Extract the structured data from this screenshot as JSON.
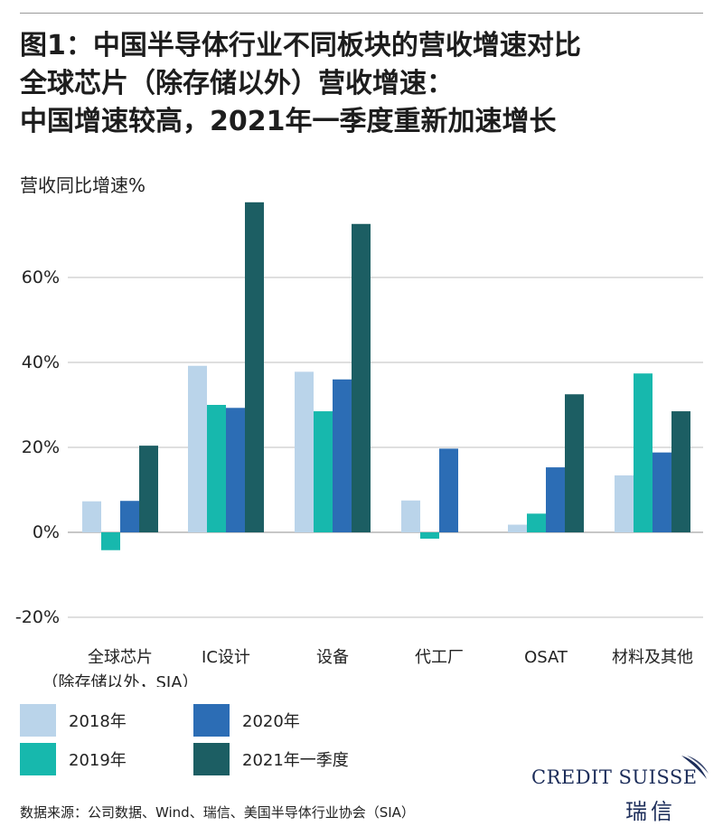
{
  "title_lines": [
    "图1：中国半导体行业不同板块的营收增速对比",
    "全球芯片（除存储以外）营收增速：",
    "中国增速较高，2021年一季度重新加速增长"
  ],
  "source": "数据来源：公司数据、Wind、瑞信、美国半导体行业协会（SIA）",
  "logo": {
    "name": "CREDIT SUISSE",
    "name_cn": "瑞信"
  },
  "colors": {
    "2018年": "#bad4ea",
    "2019年": "#17b8ad",
    "2020年": "#2c6db5",
    "2021年一季度": "#1c5e63"
  },
  "chart_data": {
    "type": "bar",
    "ylabel": "营收同比增速%",
    "ylim": [
      -20,
      80
    ],
    "yticks": [
      -20,
      0,
      20,
      40,
      60
    ],
    "ytick_labels": [
      "-20%",
      "0%",
      "20%",
      "40%",
      "60%"
    ],
    "grid": true,
    "legend_position": "bottom",
    "categories": [
      [
        "全球芯片",
        "（除存储以外，SIA）"
      ],
      [
        "IC设计"
      ],
      [
        "设备"
      ],
      [
        "代工厂"
      ],
      [
        "OSAT"
      ],
      [
        "材料及其他"
      ]
    ],
    "series": [
      {
        "name": "2018年",
        "color": "#bad4ea",
        "values": [
          7.3,
          39.2,
          37.8,
          7.5,
          1.8,
          13.4
        ]
      },
      {
        "name": "2019年",
        "color": "#17b8ad",
        "values": [
          -4.2,
          30.0,
          28.5,
          -1.5,
          4.4,
          37.4
        ]
      },
      {
        "name": "2020年",
        "color": "#2c6db5",
        "values": [
          7.4,
          29.3,
          36.0,
          19.7,
          15.3,
          18.8
        ]
      },
      {
        "name": "2021年一季度",
        "color": "#1c5e63",
        "values": [
          20.4,
          77.7,
          72.6,
          null,
          32.5,
          28.5
        ]
      }
    ]
  }
}
